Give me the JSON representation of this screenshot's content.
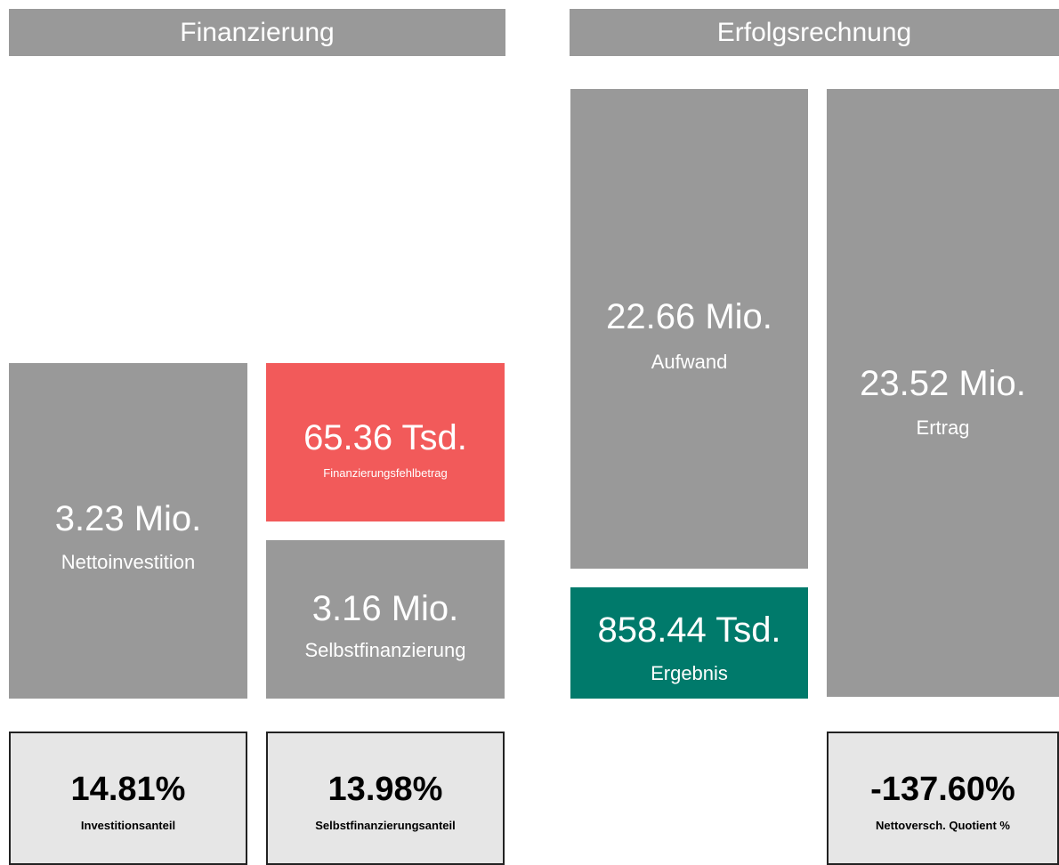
{
  "sections": [
    {
      "title": "Finanzierung",
      "tiles": [
        {
          "value": "3.23 Mio.",
          "label": "Nettoinvestition"
        },
        {
          "value": "65.36 Tsd.",
          "label": "Finanzierungsfehlbetrag"
        },
        {
          "value": "3.16 Mio.",
          "label": "Selbstfinanzierung"
        }
      ],
      "kpis": [
        {
          "value": "14.81%",
          "label": "Investitionsanteil"
        },
        {
          "value": "13.98%",
          "label": "Selbstfinanzierungsanteil"
        }
      ]
    },
    {
      "title": "Erfolgsrechnung",
      "tiles": [
        {
          "value": "22.66 Mio.",
          "label": "Aufwand"
        },
        {
          "value": "858.44 Tsd.",
          "label": "Ergebnis"
        },
        {
          "value": "23.52 Mio.",
          "label": "Ertrag"
        }
      ],
      "kpis": [
        {
          "value": "-137.60%",
          "label": "Nettoversch. Quotient %"
        }
      ]
    }
  ]
}
